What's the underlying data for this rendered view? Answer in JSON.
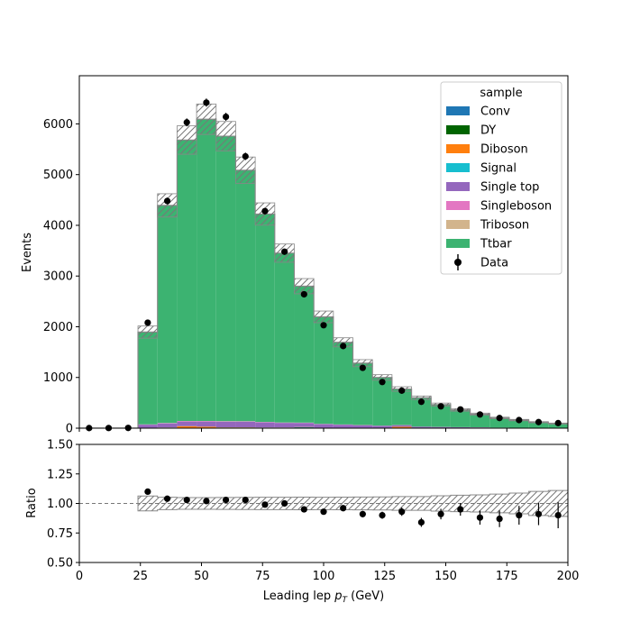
{
  "chart_data": {
    "type": "stacked-histogram-with-ratio",
    "x": {
      "label_prefix": "Leading lep ",
      "label_var": "p",
      "label_sub": "T",
      "label_suffix": " (GeV)",
      "lim": [
        0,
        200
      ],
      "ticks": [
        0,
        25,
        50,
        75,
        100,
        125,
        150,
        175,
        200
      ],
      "bin_edges": [
        0,
        8,
        16,
        24,
        32,
        40,
        48,
        56,
        64,
        72,
        80,
        88,
        96,
        104,
        112,
        120,
        128,
        136,
        144,
        152,
        160,
        168,
        176,
        184,
        192,
        200
      ]
    },
    "main": {
      "ylabel": "Events",
      "ylim": [
        0,
        6950
      ],
      "yticks": [
        0,
        1000,
        2000,
        3000,
        4000,
        5000,
        6000
      ]
    },
    "ratio": {
      "ylabel": "Ratio",
      "ylim": [
        0.5,
        1.5
      ],
      "yticks": [
        0.5,
        0.75,
        1.0,
        1.25,
        1.5
      ],
      "ytick_labels": [
        "0.50",
        "0.75",
        "1.00",
        "1.25",
        "1.50"
      ],
      "reference": 1.0
    },
    "legend": {
      "title": "sample",
      "placement": "top-right",
      "entries": [
        "Conv",
        "DY",
        "Diboson",
        "Signal",
        "Single top",
        "Singleboson",
        "Triboson",
        "Ttbar",
        "Data"
      ]
    },
    "series": [
      {
        "name": "Conv",
        "color": "#1f77b4",
        "values": [
          0,
          0,
          0,
          2,
          3,
          4,
          4,
          4,
          4,
          3,
          3,
          15,
          2,
          2,
          2,
          1,
          1,
          1,
          1,
          1,
          1,
          0,
          0,
          0,
          0
        ]
      },
      {
        "name": "DY",
        "color": "#006400",
        "values": [
          0,
          0,
          0,
          3,
          4,
          5,
          5,
          5,
          5,
          4,
          4,
          3,
          3,
          2,
          2,
          2,
          1,
          1,
          1,
          1,
          1,
          0,
          0,
          0,
          0
        ]
      },
      {
        "name": "Diboson",
        "color": "#ff7f0e",
        "values": [
          0,
          0,
          0,
          3,
          5,
          30,
          20,
          6,
          6,
          5,
          5,
          4,
          3,
          3,
          2,
          2,
          25,
          1,
          1,
          1,
          1,
          0,
          0,
          0,
          0
        ]
      },
      {
        "name": "Signal",
        "color": "#17becf",
        "values": [
          0,
          0,
          0,
          1,
          2,
          2,
          2,
          2,
          2,
          2,
          2,
          1,
          1,
          1,
          1,
          1,
          1,
          0,
          0,
          0,
          0,
          0,
          0,
          0,
          0
        ]
      },
      {
        "name": "Single top",
        "color": "#9467bd",
        "values": [
          0,
          0,
          0,
          60,
          80,
          90,
          100,
          110,
          110,
          100,
          90,
          80,
          70,
          60,
          50,
          40,
          30,
          25,
          20,
          15,
          12,
          10,
          8,
          6,
          5
        ]
      },
      {
        "name": "Singleboson",
        "color": "#e377c2",
        "values": [
          0,
          0,
          0,
          5,
          8,
          10,
          10,
          10,
          9,
          8,
          7,
          6,
          5,
          4,
          4,
          3,
          3,
          2,
          2,
          2,
          2,
          1,
          1,
          1,
          1
        ]
      },
      {
        "name": "Triboson",
        "color": "#d2b48c",
        "values": [
          0,
          0,
          0,
          1,
          1,
          1,
          1,
          1,
          1,
          1,
          1,
          1,
          1,
          1,
          1,
          1,
          1,
          0,
          0,
          0,
          0,
          0,
          0,
          0,
          0
        ]
      },
      {
        "name": "Ttbar",
        "color": "#3cb371",
        "values": [
          0,
          0,
          0,
          1820,
          4290,
          5540,
          5950,
          5620,
          4950,
          4100,
          3340,
          2690,
          2110,
          1620,
          1220,
          950,
          710,
          570,
          440,
          340,
          260,
          190,
          150,
          110,
          85
        ]
      }
    ],
    "mc_unc": [
      0,
      0,
      0,
      120,
      230,
      280,
      300,
      290,
      260,
      220,
      180,
      150,
      115,
      90,
      70,
      55,
      45,
      35,
      30,
      25,
      20,
      16,
      14,
      12,
      10
    ],
    "data": {
      "name": "Data",
      "color": "#000000",
      "values": [
        2,
        3,
        5,
        2080,
        4480,
        6030,
        6420,
        6140,
        5360,
        4280,
        3480,
        2640,
        2030,
        1620,
        1190,
        910,
        740,
        520,
        430,
        370,
        270,
        200,
        160,
        120,
        100
      ]
    },
    "ratio_points": [
      null,
      null,
      null,
      1.1,
      1.04,
      1.03,
      1.02,
      1.03,
      1.03,
      0.99,
      1.0,
      0.95,
      0.93,
      0.96,
      0.91,
      0.9,
      0.93,
      0.84,
      0.91,
      0.95,
      0.88,
      0.87,
      0.9,
      0.91,
      0.9
    ]
  }
}
